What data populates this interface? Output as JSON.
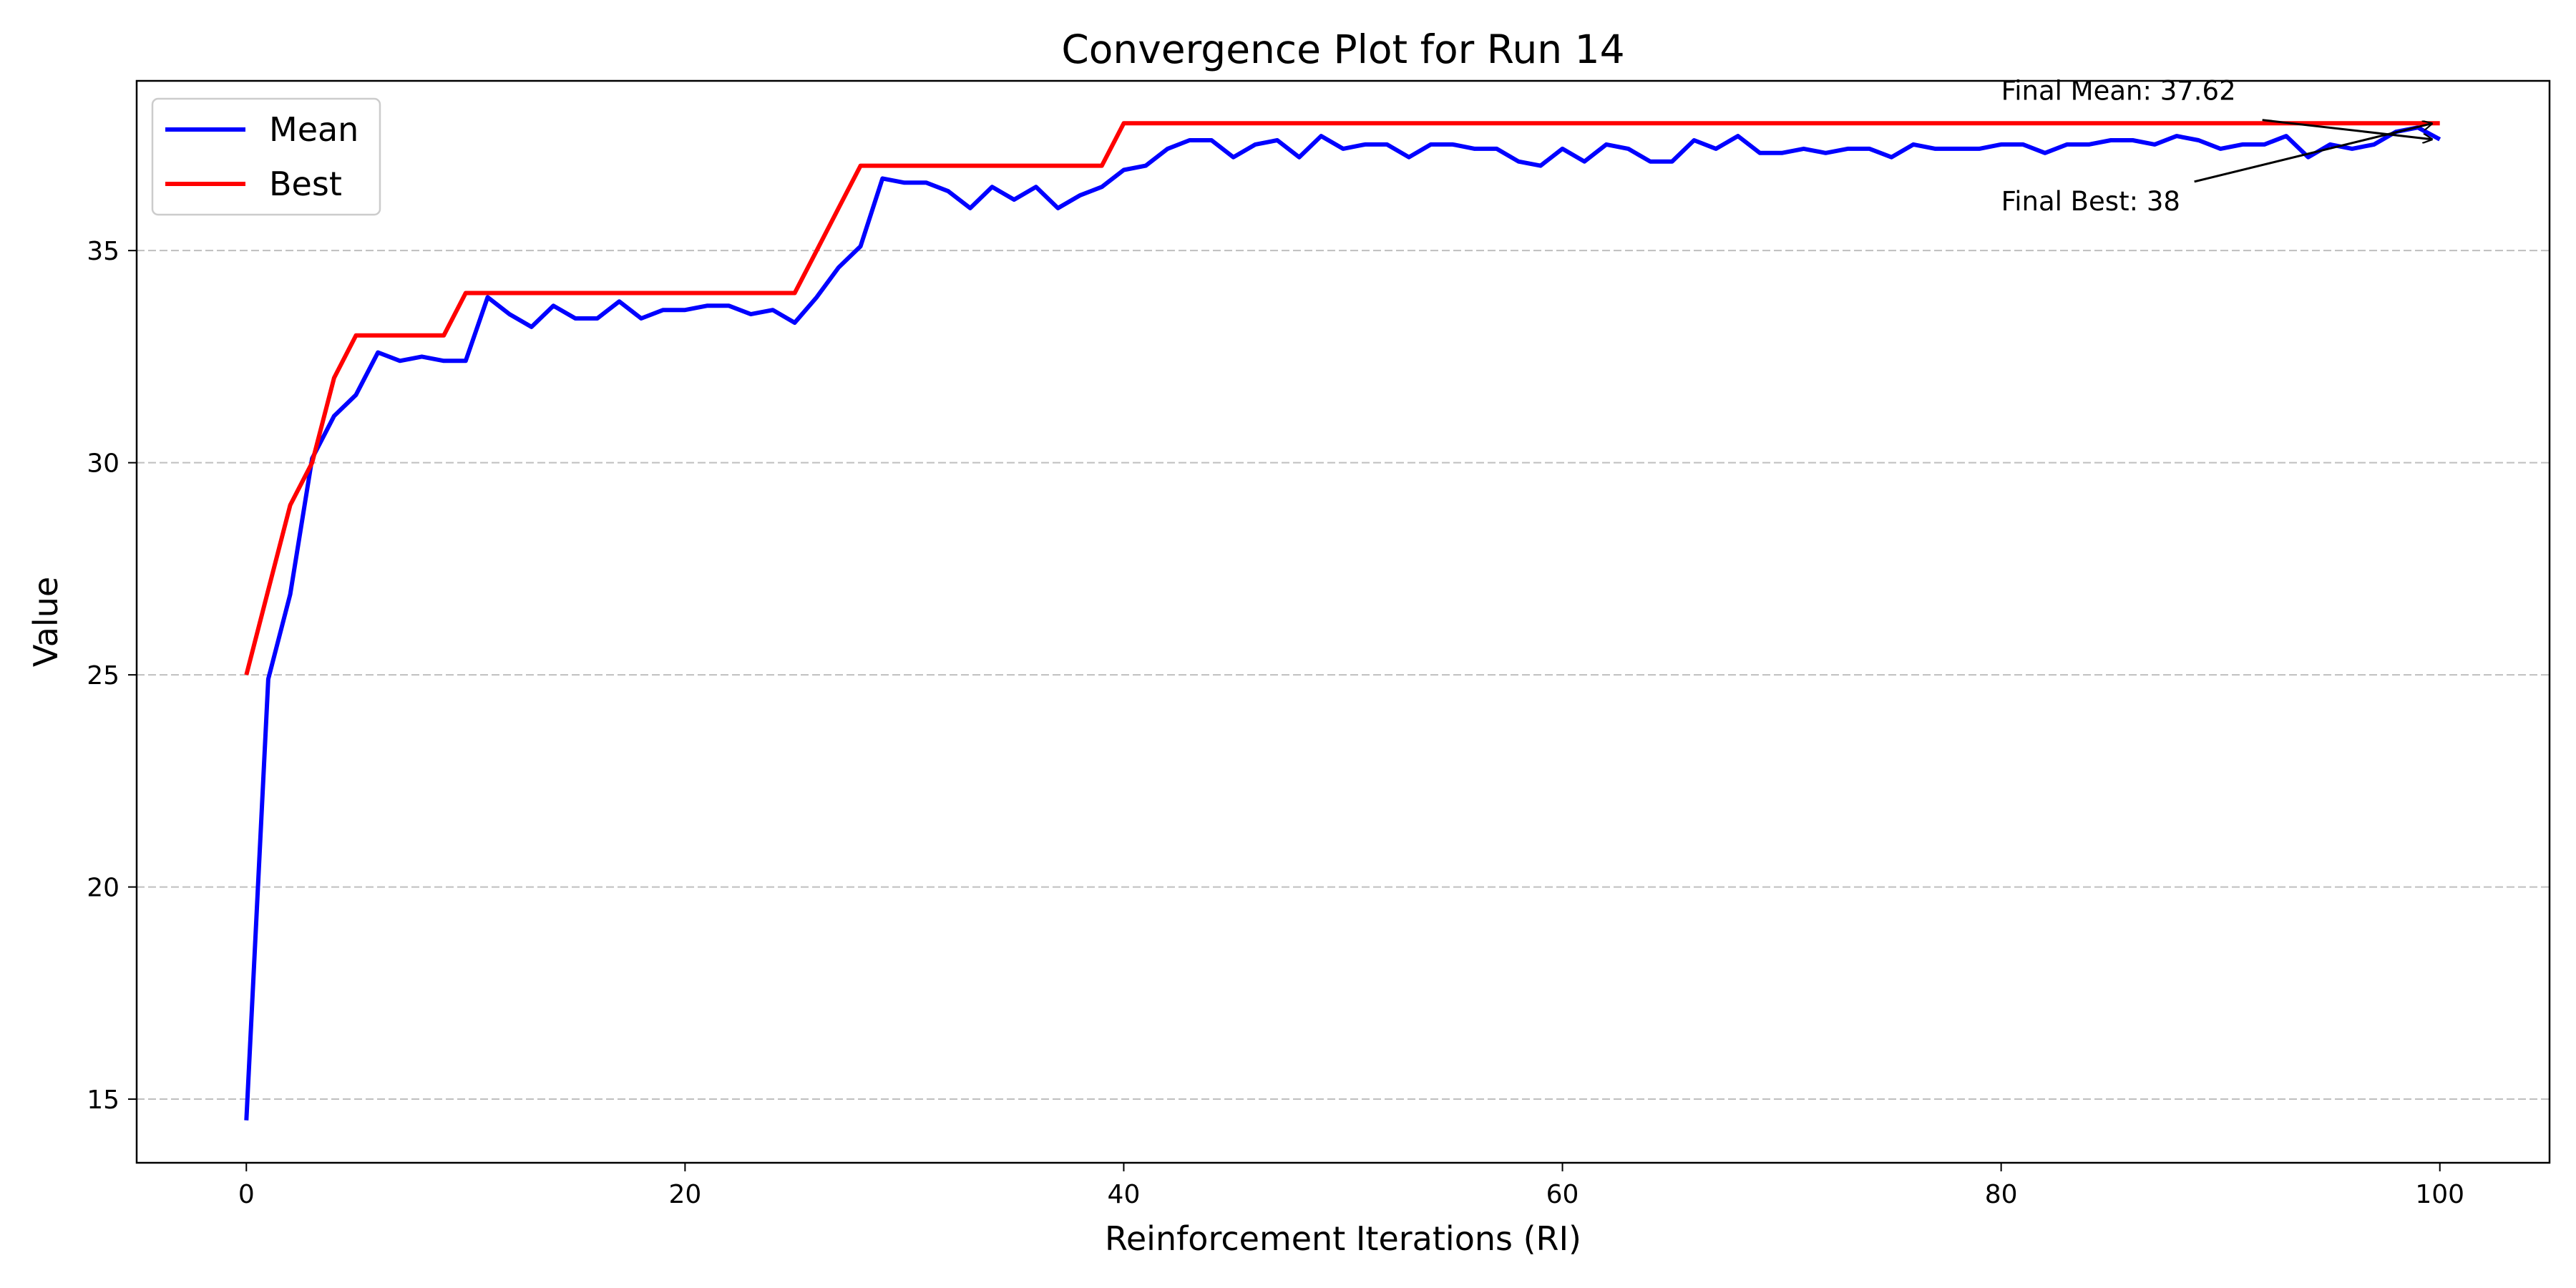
{
  "chart_data": {
    "type": "line",
    "title": "Convergence Plot for Run 14",
    "xlabel": "Reinforcement Iterations (RI)",
    "ylabel": "Value",
    "xlim": [
      -5,
      105
    ],
    "ylim": [
      13.5,
      39.0
    ],
    "xticks": [
      0,
      20,
      40,
      60,
      80,
      100
    ],
    "yticks": [
      15,
      20,
      25,
      30,
      35
    ],
    "grid": "y-dashed",
    "legend_position": "top-left",
    "x": [
      0,
      1,
      2,
      3,
      4,
      5,
      6,
      7,
      8,
      9,
      10,
      11,
      12,
      13,
      14,
      15,
      16,
      17,
      18,
      19,
      20,
      21,
      22,
      23,
      24,
      25,
      26,
      27,
      28,
      29,
      30,
      31,
      32,
      33,
      34,
      35,
      36,
      37,
      38,
      39,
      40,
      41,
      42,
      43,
      44,
      45,
      46,
      47,
      48,
      49,
      50,
      51,
      52,
      53,
      54,
      55,
      56,
      57,
      58,
      59,
      60,
      61,
      62,
      63,
      64,
      65,
      66,
      67,
      68,
      69,
      70,
      71,
      72,
      73,
      74,
      75,
      76,
      77,
      78,
      79,
      80,
      81,
      82,
      83,
      84,
      85,
      86,
      87,
      88,
      89,
      90,
      91,
      92,
      93,
      94,
      95,
      96,
      97,
      98,
      99,
      100
    ],
    "series": [
      {
        "name": "Mean",
        "color": "#0000ff",
        "values": [
          14.5,
          24.9,
          26.9,
          30.1,
          31.1,
          31.6,
          32.6,
          32.4,
          32.5,
          32.4,
          32.4,
          33.9,
          33.5,
          33.2,
          33.7,
          33.4,
          33.4,
          33.8,
          33.4,
          33.6,
          33.6,
          33.7,
          33.7,
          33.5,
          33.6,
          33.3,
          33.9,
          34.6,
          35.1,
          36.7,
          36.6,
          36.6,
          36.4,
          36.0,
          36.5,
          36.2,
          36.5,
          36.0,
          36.3,
          36.5,
          36.9,
          37.0,
          37.4,
          37.6,
          37.6,
          37.2,
          37.5,
          37.6,
          37.2,
          37.7,
          37.4,
          37.5,
          37.5,
          37.2,
          37.5,
          37.5,
          37.4,
          37.4,
          37.1,
          37.0,
          37.4,
          37.1,
          37.5,
          37.4,
          37.1,
          37.1,
          37.6,
          37.4,
          37.7,
          37.3,
          37.3,
          37.4,
          37.3,
          37.4,
          37.4,
          37.2,
          37.5,
          37.4,
          37.4,
          37.4,
          37.5,
          37.5,
          37.3,
          37.5,
          37.5,
          37.6,
          37.6,
          37.5,
          37.7,
          37.6,
          37.4,
          37.5,
          37.5,
          37.7,
          37.2,
          37.5,
          37.4,
          37.5,
          37.8,
          37.9,
          37.62
        ]
      },
      {
        "name": "Best",
        "color": "#ff0000",
        "values": [
          25,
          27,
          29,
          30,
          32,
          33,
          33,
          33,
          33,
          33,
          34,
          34,
          34,
          34,
          34,
          34,
          34,
          34,
          34,
          34,
          34,
          34,
          34,
          34,
          34,
          34,
          35,
          36,
          37,
          37,
          37,
          37,
          37,
          37,
          37,
          37,
          37,
          37,
          37,
          37,
          38,
          38,
          38,
          38,
          38,
          38,
          38,
          38,
          38,
          38,
          38,
          38,
          38,
          38,
          38,
          38,
          38,
          38,
          38,
          38,
          38,
          38,
          38,
          38,
          38,
          38,
          38,
          38,
          38,
          38,
          38,
          38,
          38,
          38,
          38,
          38,
          38,
          38,
          38,
          38,
          38,
          38,
          38,
          38,
          38,
          38,
          38,
          38,
          38,
          38,
          38,
          38,
          38,
          38,
          38,
          38,
          38,
          38,
          38,
          38,
          38
        ]
      }
    ],
    "annotations": [
      {
        "text": "Final Mean: 37.62",
        "text_at": [
          80,
          38.55
        ],
        "arrow_to": [
          100,
          37.62
        ]
      },
      {
        "text": "Final Best: 38",
        "text_at": [
          80,
          35.95
        ],
        "arrow_to": [
          100,
          38.0
        ]
      }
    ]
  }
}
